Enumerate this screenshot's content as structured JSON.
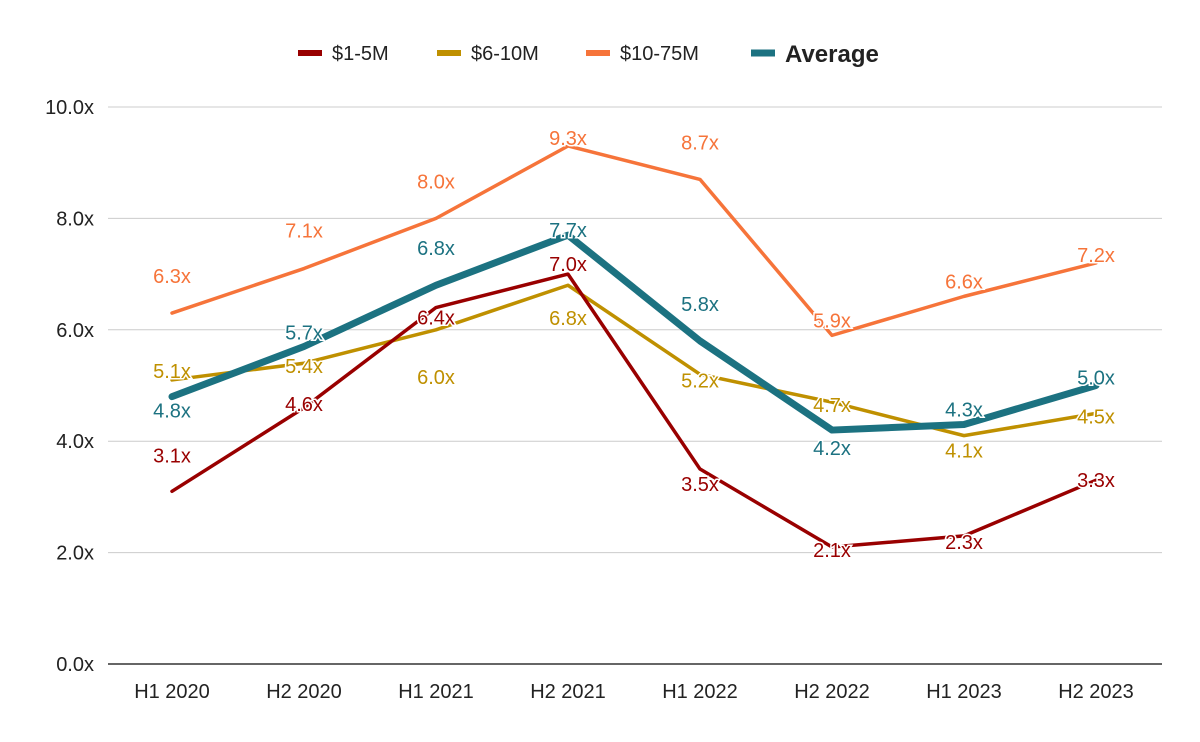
{
  "chart_data": {
    "type": "line",
    "categories": [
      "H1 2020",
      "H2 2020",
      "H1 2021",
      "H2 2021",
      "H1 2022",
      "H2 2022",
      "H1 2023",
      "H2 2023"
    ],
    "ylim": [
      0,
      10
    ],
    "yticks": [
      "0.0x",
      "2.0x",
      "4.0x",
      "6.0x",
      "8.0x",
      "10.0x"
    ],
    "grid": true,
    "legend_position": "top",
    "series": [
      {
        "name": "$1-5M",
        "color": "#990000",
        "values": [
          3.1,
          4.6,
          6.4,
          7.0,
          3.5,
          2.1,
          2.3,
          3.3
        ],
        "labels": [
          "3.1x",
          "4.6x",
          "6.4x",
          "7.0x",
          "3.5x",
          "2.1x",
          "2.3x",
          "3.3x"
        ]
      },
      {
        "name": "$6-10M",
        "color": "#bf9000",
        "values": [
          5.1,
          5.4,
          6.0,
          6.8,
          5.2,
          4.7,
          4.1,
          4.5
        ],
        "labels": [
          "5.1x",
          "5.4x",
          "6.0x",
          "6.8x",
          "5.2x",
          "4.7x",
          "4.1x",
          "4.5x"
        ]
      },
      {
        "name": "$10-75M",
        "color": "#f6743a",
        "values": [
          6.3,
          7.1,
          8.0,
          9.3,
          8.7,
          5.9,
          6.6,
          7.2
        ],
        "labels": [
          "6.3x",
          "7.1x",
          "8.0x",
          "9.3x",
          "8.7x",
          "5.9x",
          "6.6x",
          "7.2x"
        ]
      },
      {
        "name": "Average",
        "color": "#1c7281",
        "emphasis": true,
        "values": [
          4.8,
          5.7,
          6.8,
          7.7,
          5.8,
          4.2,
          4.3,
          5.0
        ],
        "labels": [
          "4.8x",
          "5.7x",
          "6.8x",
          "7.7x",
          "5.8x",
          "4.2x",
          "4.3x",
          "5.0x"
        ]
      }
    ]
  }
}
